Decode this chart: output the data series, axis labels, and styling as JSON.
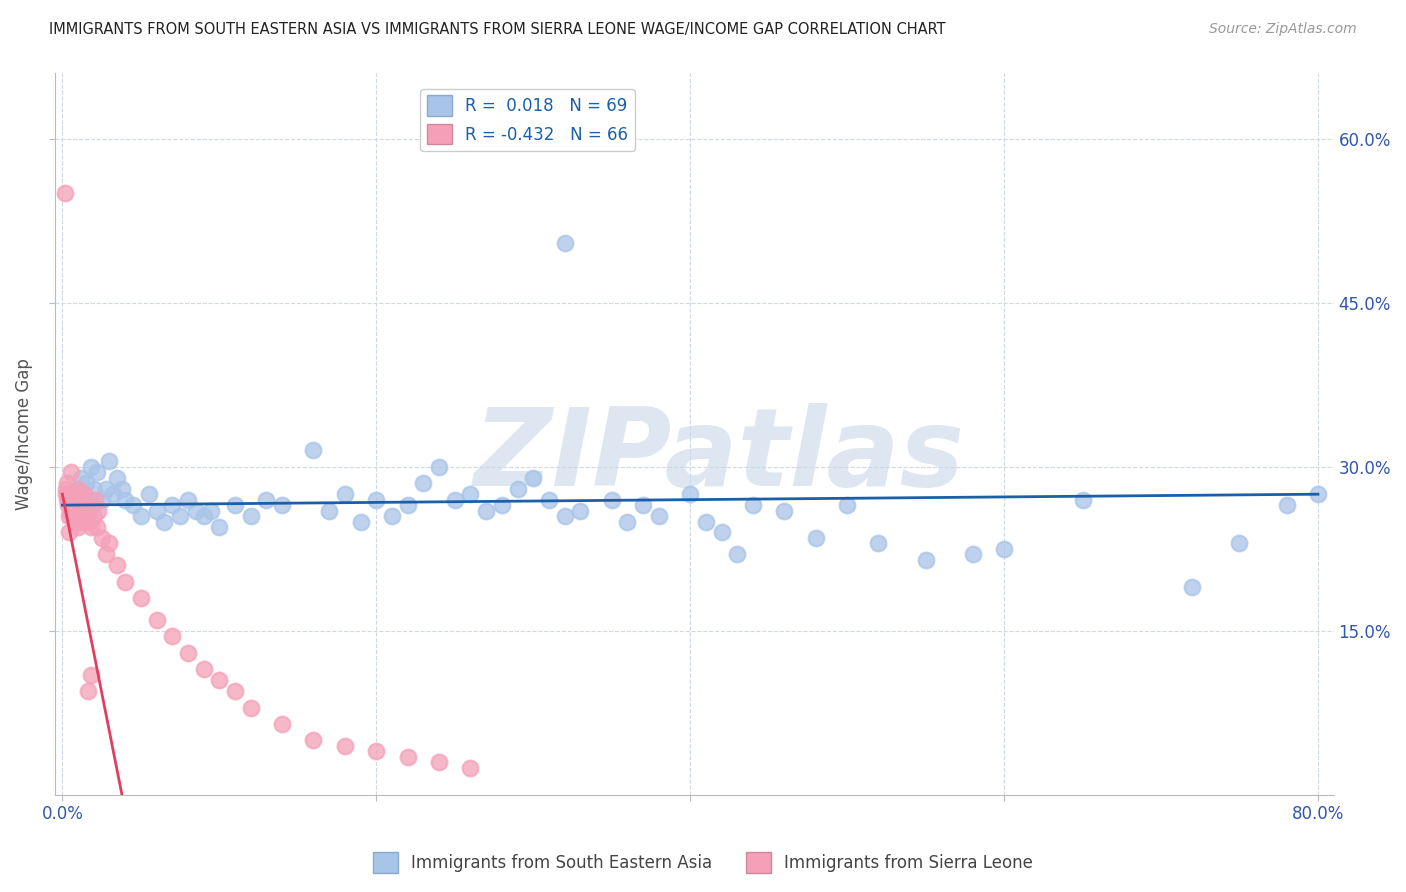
{
  "title": "IMMIGRANTS FROM SOUTH EASTERN ASIA VS IMMIGRANTS FROM SIERRA LEONE WAGE/INCOME GAP CORRELATION CHART",
  "source": "Source: ZipAtlas.com",
  "ylabel": "Wage/Income Gap",
  "xlim": [
    0.0,
    80.0
  ],
  "ylim": [
    0.0,
    65.0
  ],
  "x_ticks": [
    0.0,
    20.0,
    40.0,
    60.0,
    80.0
  ],
  "x_tick_labels": [
    "0.0%",
    "",
    "",
    "",
    "80.0%"
  ],
  "y_ticks_right": [
    15.0,
    30.0,
    45.0,
    60.0
  ],
  "y_tick_labels_right": [
    "15.0%",
    "30.0%",
    "45.0%",
    "60.0%"
  ],
  "blue_color": "#a8c4e8",
  "pink_color": "#f4a0b8",
  "blue_line_color": "#1a5fa8",
  "pink_line_color": "#e04060",
  "watermark": "ZIPatlas",
  "watermark_color": "#c8d8e8",
  "grid_color": "#d0d8e0",
  "blue_scatter_x": [
    0.8,
    1.2,
    1.5,
    1.8,
    2.0,
    2.2,
    2.5,
    2.8,
    3.0,
    3.2,
    3.5,
    3.8,
    4.0,
    4.5,
    5.0,
    5.5,
    6.0,
    6.5,
    7.0,
    7.5,
    8.0,
    8.5,
    9.0,
    9.5,
    10.0,
    11.0,
    12.0,
    13.0,
    14.0,
    16.0,
    17.0,
    18.0,
    19.0,
    20.0,
    21.0,
    22.0,
    23.0,
    24.0,
    25.0,
    26.0,
    27.0,
    28.0,
    29.0,
    30.0,
    31.0,
    32.0,
    33.0,
    35.0,
    36.0,
    37.0,
    38.0,
    40.0,
    41.0,
    42.0,
    43.0,
    44.0,
    46.0,
    48.0,
    50.0,
    52.0,
    55.0,
    58.0,
    60.0,
    65.0,
    72.0,
    75.0,
    78.0,
    80.0,
    32.0
  ],
  "blue_scatter_y": [
    27.5,
    29.0,
    28.5,
    30.0,
    28.0,
    29.5,
    27.0,
    28.0,
    30.5,
    27.5,
    29.0,
    28.0,
    27.0,
    26.5,
    25.5,
    27.5,
    26.0,
    25.0,
    26.5,
    25.5,
    27.0,
    26.0,
    25.5,
    26.0,
    24.5,
    26.5,
    25.5,
    27.0,
    26.5,
    31.5,
    26.0,
    27.5,
    25.0,
    27.0,
    25.5,
    26.5,
    28.5,
    30.0,
    27.0,
    27.5,
    26.0,
    26.5,
    28.0,
    29.0,
    27.0,
    25.5,
    26.0,
    27.0,
    25.0,
    26.5,
    25.5,
    27.5,
    25.0,
    24.0,
    22.0,
    26.5,
    26.0,
    23.5,
    26.5,
    23.0,
    21.5,
    22.0,
    22.5,
    27.0,
    19.0,
    23.0,
    26.5,
    27.5,
    50.5
  ],
  "pink_scatter_x": [
    0.2,
    0.25,
    0.3,
    0.35,
    0.4,
    0.45,
    0.5,
    0.55,
    0.6,
    0.65,
    0.7,
    0.75,
    0.8,
    0.85,
    0.9,
    0.95,
    1.0,
    1.05,
    1.1,
    1.15,
    1.2,
    1.25,
    1.3,
    1.35,
    1.4,
    1.5,
    1.6,
    1.7,
    1.8,
    1.9,
    2.0,
    2.1,
    2.2,
    2.3,
    2.5,
    2.8,
    3.0,
    3.5,
    4.0,
    5.0,
    6.0,
    7.0,
    8.0,
    9.0,
    10.0,
    11.0,
    12.0,
    14.0,
    16.0,
    18.0,
    20.0,
    22.0,
    24.0,
    26.0,
    0.15,
    0.28,
    0.42,
    0.58,
    0.72,
    0.88,
    1.02,
    1.18,
    1.32,
    1.48,
    1.65,
    1.82
  ],
  "pink_scatter_y": [
    28.0,
    27.5,
    27.0,
    26.5,
    27.5,
    25.5,
    26.0,
    27.0,
    25.5,
    26.5,
    27.5,
    26.0,
    25.5,
    27.0,
    26.5,
    25.0,
    28.0,
    26.5,
    27.5,
    25.0,
    26.0,
    27.0,
    25.5,
    26.0,
    27.5,
    25.5,
    26.0,
    25.0,
    24.5,
    26.5,
    25.5,
    27.0,
    24.5,
    26.0,
    23.5,
    22.0,
    23.0,
    21.0,
    19.5,
    18.0,
    16.0,
    14.5,
    13.0,
    11.5,
    10.5,
    9.5,
    8.0,
    6.5,
    5.0,
    4.5,
    4.0,
    3.5,
    3.0,
    2.5,
    55.0,
    28.5,
    24.0,
    29.5,
    26.0,
    25.5,
    24.5,
    27.0,
    25.0,
    26.5,
    9.5,
    11.0
  ],
  "blue_line_x": [
    0.0,
    80.0
  ],
  "blue_line_y": [
    26.5,
    27.5
  ],
  "pink_line_x": [
    0.0,
    3.8
  ],
  "pink_line_y": [
    27.5,
    0.0
  ]
}
